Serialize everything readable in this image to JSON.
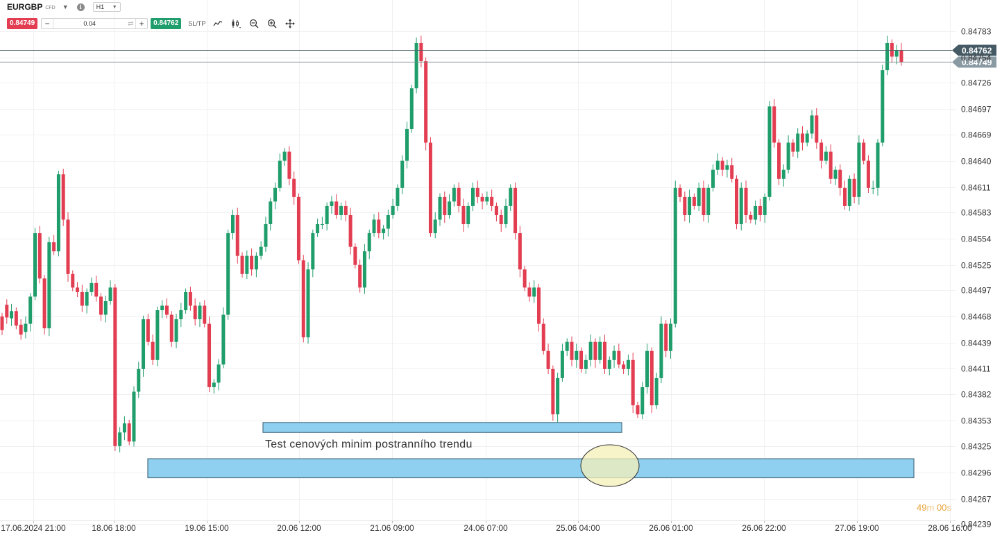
{
  "toolbar": {
    "symbol": "EURGBP",
    "instrument_type": "CFD",
    "timeframe": "H1",
    "sell_price": "0.84749",
    "quantity": "0.04",
    "minus_label": "−",
    "plus_label": "+",
    "buy_price": "0.84762",
    "sltp_label": "SL/TP",
    "icons": [
      "chevron-down-icon",
      "info-icon",
      "line-chart-icon",
      "candlestick-icon",
      "zoom-out-icon",
      "zoom-in-icon",
      "move-icon"
    ]
  },
  "countdown": {
    "minutes": "49",
    "m_suffix": "m",
    "seconds": "00",
    "s_suffix": "s"
  },
  "colors": {
    "up": "#1f9d6b",
    "down": "#e23d51",
    "zone_fill": "#8fd0f0",
    "zone_stroke": "#4a6f82",
    "ellipse_fill": "#f6f0b8",
    "price_label_dark": "#455a64",
    "price_label_light": "#8a9aa3",
    "countdown": "#e8a53c"
  },
  "chart_data": {
    "type": "candlestick",
    "symbol": "EURGBP",
    "timeframe": "H1",
    "y_ticks": [
      "0.84783",
      "0.84754",
      "0.84726",
      "0.84697",
      "0.84669",
      "0.84640",
      "0.84611",
      "0.84583",
      "0.84554",
      "0.84525",
      "0.84497",
      "0.84468",
      "0.84439",
      "0.84411",
      "0.84382",
      "0.84353",
      "0.84325",
      "0.84296",
      "0.84267",
      "0.84239"
    ],
    "ylim": [
      0.84239,
      0.84783
    ],
    "x_ticks": [
      "17.06.2024 21:00",
      "18.06 18:00",
      "19.06 15:00",
      "20.06 12:00",
      "21.06 09:00",
      "24.06 07:00",
      "25.06 04:00",
      "26.06 01:00",
      "26.06 22:00",
      "27.06 19:00",
      "28.06 16:00"
    ],
    "price_lines": [
      {
        "label": "0.84762",
        "value": 0.84762,
        "style": "ask"
      },
      {
        "label": "0.84749",
        "value": 0.84749,
        "style": "bid"
      }
    ],
    "annotations": {
      "text": "Test cenových minim postranního trendu",
      "upper_zone": {
        "from": "20.06 early",
        "to": "25.06 morning",
        "low": 0.8434,
        "high": 0.84351
      },
      "lower_zone": {
        "from": "18.06 evening",
        "to": "28.06 11:00",
        "low": 0.8429,
        "high": 0.84311
      },
      "highlight": "ellipse around 25.06 low"
    },
    "candle_points": [
      [
        0.84468,
        0.84453
      ],
      [
        0.84481,
        0.84467
      ],
      [
        0.84466,
        0.84474
      ],
      [
        0.84474,
        0.84458
      ],
      [
        0.84459,
        0.84448
      ],
      [
        0.84451,
        0.8446
      ],
      [
        0.8446,
        0.8449
      ],
      [
        0.8449,
        0.8456
      ],
      [
        0.8456,
        0.8451
      ],
      [
        0.8451,
        0.84455
      ],
      [
        0.84455,
        0.8455
      ],
      [
        0.8455,
        0.8454
      ],
      [
        0.8454,
        0.84625
      ],
      [
        0.84625,
        0.84575
      ],
      [
        0.84575,
        0.84515
      ],
      [
        0.84515,
        0.845
      ],
      [
        0.845,
        0.84495
      ],
      [
        0.84495,
        0.8448
      ],
      [
        0.8448,
        0.84495
      ],
      [
        0.84495,
        0.84505
      ],
      [
        0.84505,
        0.8449
      ],
      [
        0.8449,
        0.8447
      ],
      [
        0.8447,
        0.84485
      ],
      [
        0.84485,
        0.845
      ],
      [
        0.845,
        0.84325
      ],
      [
        0.84325,
        0.8434
      ],
      [
        0.8434,
        0.8435
      ],
      [
        0.8435,
        0.8433
      ],
      [
        0.8433,
        0.84385
      ],
      [
        0.84385,
        0.8441
      ],
      [
        0.8441,
        0.84465
      ],
      [
        0.84465,
        0.8444
      ],
      [
        0.8444,
        0.8442
      ],
      [
        0.8442,
        0.84475
      ],
      [
        0.84475,
        0.8448
      ],
      [
        0.8448,
        0.8447
      ],
      [
        0.8447,
        0.8444
      ],
      [
        0.8444,
        0.84465
      ],
      [
        0.84465,
        0.84475
      ],
      [
        0.84475,
        0.84495
      ],
      [
        0.84495,
        0.8448
      ],
      [
        0.8448,
        0.84465
      ],
      [
        0.84465,
        0.8448
      ],
      [
        0.8448,
        0.8446
      ],
      [
        0.8446,
        0.8439
      ],
      [
        0.8439,
        0.84395
      ],
      [
        0.84395,
        0.84415
      ],
      [
        0.84415,
        0.8447
      ],
      [
        0.8447,
        0.8456
      ],
      [
        0.8456,
        0.8458
      ],
      [
        0.8458,
        0.84535
      ],
      [
        0.84535,
        0.84515
      ],
      [
        0.84515,
        0.84535
      ],
      [
        0.84535,
        0.8452
      ],
      [
        0.8452,
        0.84535
      ],
      [
        0.84535,
        0.84545
      ],
      [
        0.84545,
        0.8457
      ],
      [
        0.8457,
        0.84595
      ],
      [
        0.84595,
        0.8461
      ],
      [
        0.8461,
        0.8464
      ],
      [
        0.8464,
        0.8465
      ],
      [
        0.8465,
        0.8462
      ],
      [
        0.8462,
        0.846
      ],
      [
        0.846,
        0.8453
      ],
      [
        0.8453,
        0.84445
      ],
      [
        0.84445,
        0.8452
      ],
      [
        0.8452,
        0.8456
      ],
      [
        0.8456,
        0.8457
      ],
      [
        0.8457,
        0.8457
      ],
      [
        0.8457,
        0.8459
      ],
      [
        0.8459,
        0.84595
      ],
      [
        0.84595,
        0.8458
      ],
      [
        0.8458,
        0.8459
      ],
      [
        0.8459,
        0.8458
      ],
      [
        0.8458,
        0.84545
      ],
      [
        0.84545,
        0.84525
      ],
      [
        0.84525,
        0.845
      ],
      [
        0.845,
        0.8454
      ],
      [
        0.8454,
        0.8456
      ],
      [
        0.8456,
        0.84575
      ],
      [
        0.84575,
        0.8456
      ],
      [
        0.8456,
        0.84565
      ],
      [
        0.84565,
        0.8458
      ],
      [
        0.8458,
        0.8459
      ],
      [
        0.8459,
        0.8461
      ],
      [
        0.8461,
        0.8464
      ],
      [
        0.8464,
        0.84675
      ],
      [
        0.84675,
        0.8472
      ],
      [
        0.8472,
        0.8477
      ],
      [
        0.8477,
        0.8475
      ],
      [
        0.8475,
        0.8466
      ],
      [
        0.8466,
        0.8456
      ],
      [
        0.8456,
        0.84575
      ],
      [
        0.84575,
        0.846
      ],
      [
        0.846,
        0.8458
      ],
      [
        0.8458,
        0.84595
      ],
      [
        0.84595,
        0.8461
      ],
      [
        0.8461,
        0.8459
      ],
      [
        0.8459,
        0.8457
      ],
      [
        0.8457,
        0.8459
      ],
      [
        0.8459,
        0.8461
      ],
      [
        0.8461,
        0.846
      ],
      [
        0.846,
        0.84595
      ],
      [
        0.84595,
        0.846
      ],
      [
        0.846,
        0.8459
      ],
      [
        0.8459,
        0.8458
      ],
      [
        0.8458,
        0.8457
      ],
      [
        0.8457,
        0.8459
      ],
      [
        0.8459,
        0.8461
      ],
      [
        0.8461,
        0.8456
      ],
      [
        0.8456,
        0.8452
      ],
      [
        0.8452,
        0.845
      ],
      [
        0.845,
        0.8449
      ],
      [
        0.8449,
        0.845
      ],
      [
        0.845,
        0.8446
      ],
      [
        0.8446,
        0.8443
      ],
      [
        0.8443,
        0.8441
      ],
      [
        0.8441,
        0.8436
      ],
      [
        0.8436,
        0.844
      ],
      [
        0.844,
        0.8443
      ],
      [
        0.8443,
        0.8444
      ],
      [
        0.8444,
        0.8442
      ],
      [
        0.8442,
        0.8443
      ],
      [
        0.8443,
        0.8441
      ],
      [
        0.8441,
        0.8442
      ],
      [
        0.8442,
        0.8444
      ],
      [
        0.8444,
        0.8442
      ],
      [
        0.8442,
        0.8444
      ],
      [
        0.8444,
        0.8441
      ],
      [
        0.8441,
        0.8442
      ],
      [
        0.8442,
        0.8443
      ],
      [
        0.8443,
        0.84415
      ],
      [
        0.84415,
        0.8441
      ],
      [
        0.8441,
        0.8442
      ],
      [
        0.8442,
        0.8437
      ],
      [
        0.8437,
        0.8436
      ],
      [
        0.8436,
        0.8439
      ],
      [
        0.8439,
        0.8443
      ],
      [
        0.8443,
        0.8437
      ],
      [
        0.8437,
        0.844
      ],
      [
        0.844,
        0.8446
      ],
      [
        0.8446,
        0.8443
      ],
      [
        0.8443,
        0.8446
      ],
      [
        0.8446,
        0.8461
      ],
      [
        0.8461,
        0.846
      ],
      [
        0.846,
        0.8458
      ],
      [
        0.8458,
        0.846
      ],
      [
        0.846,
        0.8459
      ],
      [
        0.8459,
        0.8461
      ],
      [
        0.8461,
        0.8458
      ],
      [
        0.8458,
        0.8461
      ],
      [
        0.8461,
        0.8463
      ],
      [
        0.8463,
        0.8464
      ],
      [
        0.8464,
        0.8463
      ],
      [
        0.8463,
        0.84635
      ],
      [
        0.84635,
        0.8462
      ],
      [
        0.8462,
        0.8457
      ],
      [
        0.8457,
        0.8461
      ],
      [
        0.8461,
        0.8458
      ],
      [
        0.8458,
        0.84575
      ],
      [
        0.84575,
        0.8459
      ],
      [
        0.8459,
        0.8458
      ],
      [
        0.8458,
        0.846
      ],
      [
        0.846,
        0.847
      ],
      [
        0.847,
        0.8466
      ],
      [
        0.8466,
        0.8462
      ],
      [
        0.8462,
        0.8463
      ],
      [
        0.8463,
        0.8466
      ],
      [
        0.8466,
        0.8465
      ],
      [
        0.8465,
        0.8467
      ],
      [
        0.8467,
        0.8466
      ],
      [
        0.8466,
        0.8467
      ],
      [
        0.8467,
        0.8469
      ],
      [
        0.8469,
        0.8466
      ],
      [
        0.8466,
        0.8464
      ],
      [
        0.8464,
        0.8465
      ],
      [
        0.8465,
        0.8462
      ],
      [
        0.8462,
        0.8463
      ],
      [
        0.8463,
        0.8461
      ],
      [
        0.8461,
        0.8459
      ],
      [
        0.8459,
        0.8462
      ],
      [
        0.8462,
        0.846
      ],
      [
        0.846,
        0.8466
      ],
      [
        0.8466,
        0.8464
      ],
      [
        0.8464,
        0.8461
      ],
      [
        0.8461,
        0.8461
      ],
      [
        0.8461,
        0.8466
      ],
      [
        0.8466,
        0.8474
      ],
      [
        0.8474,
        0.8477
      ],
      [
        0.8477,
        0.84755
      ],
      [
        0.84755,
        0.84762
      ],
      [
        0.84762,
        0.84749
      ]
    ]
  }
}
